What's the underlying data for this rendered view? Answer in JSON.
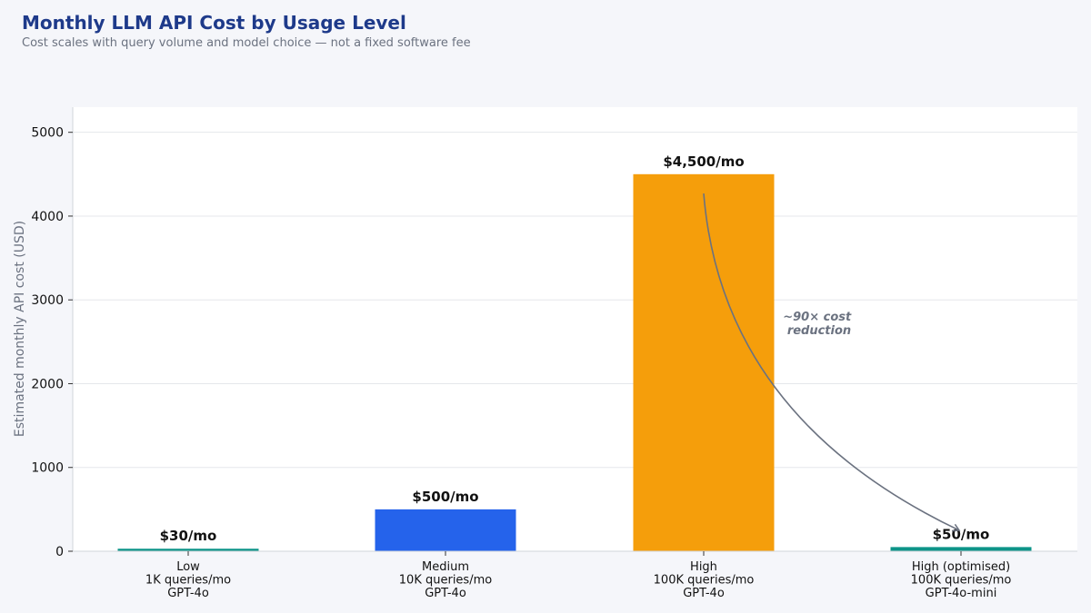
{
  "title": "Monthly LLM API Cost by Usage Level",
  "subtitle": "Cost scales with query volume and model choice — not a fixed software fee",
  "chart_data": {
    "type": "bar",
    "categories": [
      [
        "Low",
        "1K queries/mo",
        "GPT-4o"
      ],
      [
        "Medium",
        "10K queries/mo",
        "GPT-4o"
      ],
      [
        "High",
        "100K queries/mo",
        "GPT-4o"
      ],
      [
        "High (optimised)",
        "100K queries/mo",
        "GPT-4o-mini"
      ]
    ],
    "values": [
      30,
      500,
      4500,
      50
    ],
    "data_labels": [
      "$30/mo",
      "$500/mo",
      "$4,500/mo",
      "$50/mo"
    ],
    "colors": [
      "#0d9488",
      "#2563eb",
      "#f59e0b",
      "#0d9488"
    ],
    "ylabel": "Estimated monthly API cost (USD)",
    "ylim": [
      0,
      5300
    ],
    "yticks": [
      0,
      1000,
      2000,
      3000,
      4000,
      5000
    ],
    "grid": true,
    "annotation": {
      "lines": [
        "~90× cost",
        "reduction"
      ],
      "from_category": 2,
      "to_category": 3
    }
  }
}
